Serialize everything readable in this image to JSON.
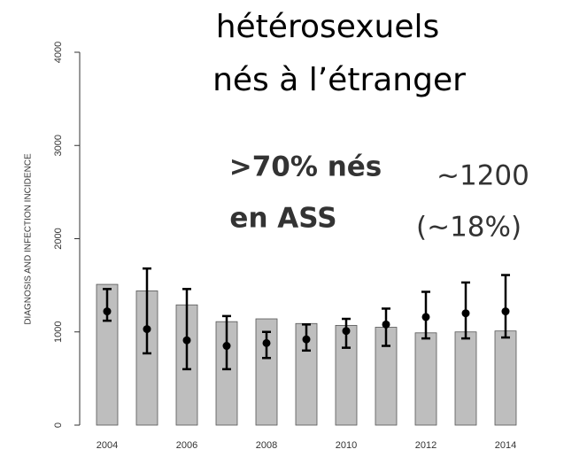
{
  "chart_data": {
    "type": "bar",
    "title": [
      "hétérosexuels",
      "nés à l’étranger"
    ],
    "ylabel": "DIAGNOSIS AND INFECTION INCIDENCE",
    "annotations": [
      {
        "lines": [
          ">70% nés",
          "en ASS"
        ],
        "color": "#f79646"
      },
      {
        "lines": [
          "∼1200",
          "(∼18%)"
        ],
        "color": "#1a1ae6"
      }
    ],
    "x": [
      2004,
      2005,
      2006,
      2007,
      2008,
      2009,
      2010,
      2011,
      2012,
      2013,
      2014
    ],
    "values": [
      1510,
      1440,
      1290,
      1110,
      1140,
      1090,
      1070,
      1050,
      990,
      1000,
      1010
    ],
    "color": "#bebebe",
    "points": {
      "values": [
        1220,
        1030,
        910,
        850,
        880,
        920,
        1010,
        1080,
        1160,
        1200,
        1220
      ],
      "lower": [
        1120,
        770,
        600,
        600,
        720,
        800,
        830,
        850,
        930,
        930,
        940
      ],
      "upper": [
        1460,
        1680,
        1460,
        1170,
        1000,
        1080,
        1140,
        1250,
        1430,
        1530,
        1610
      ],
      "color": "#000000"
    },
    "xlim": [
      2003.2,
      2015.2
    ],
    "xticks": [
      2004,
      2006,
      2008,
      2010,
      2012,
      2014
    ],
    "ylim": [
      0,
      4000
    ],
    "yticks": [
      0,
      1000,
      2000,
      3000,
      4000
    ]
  }
}
